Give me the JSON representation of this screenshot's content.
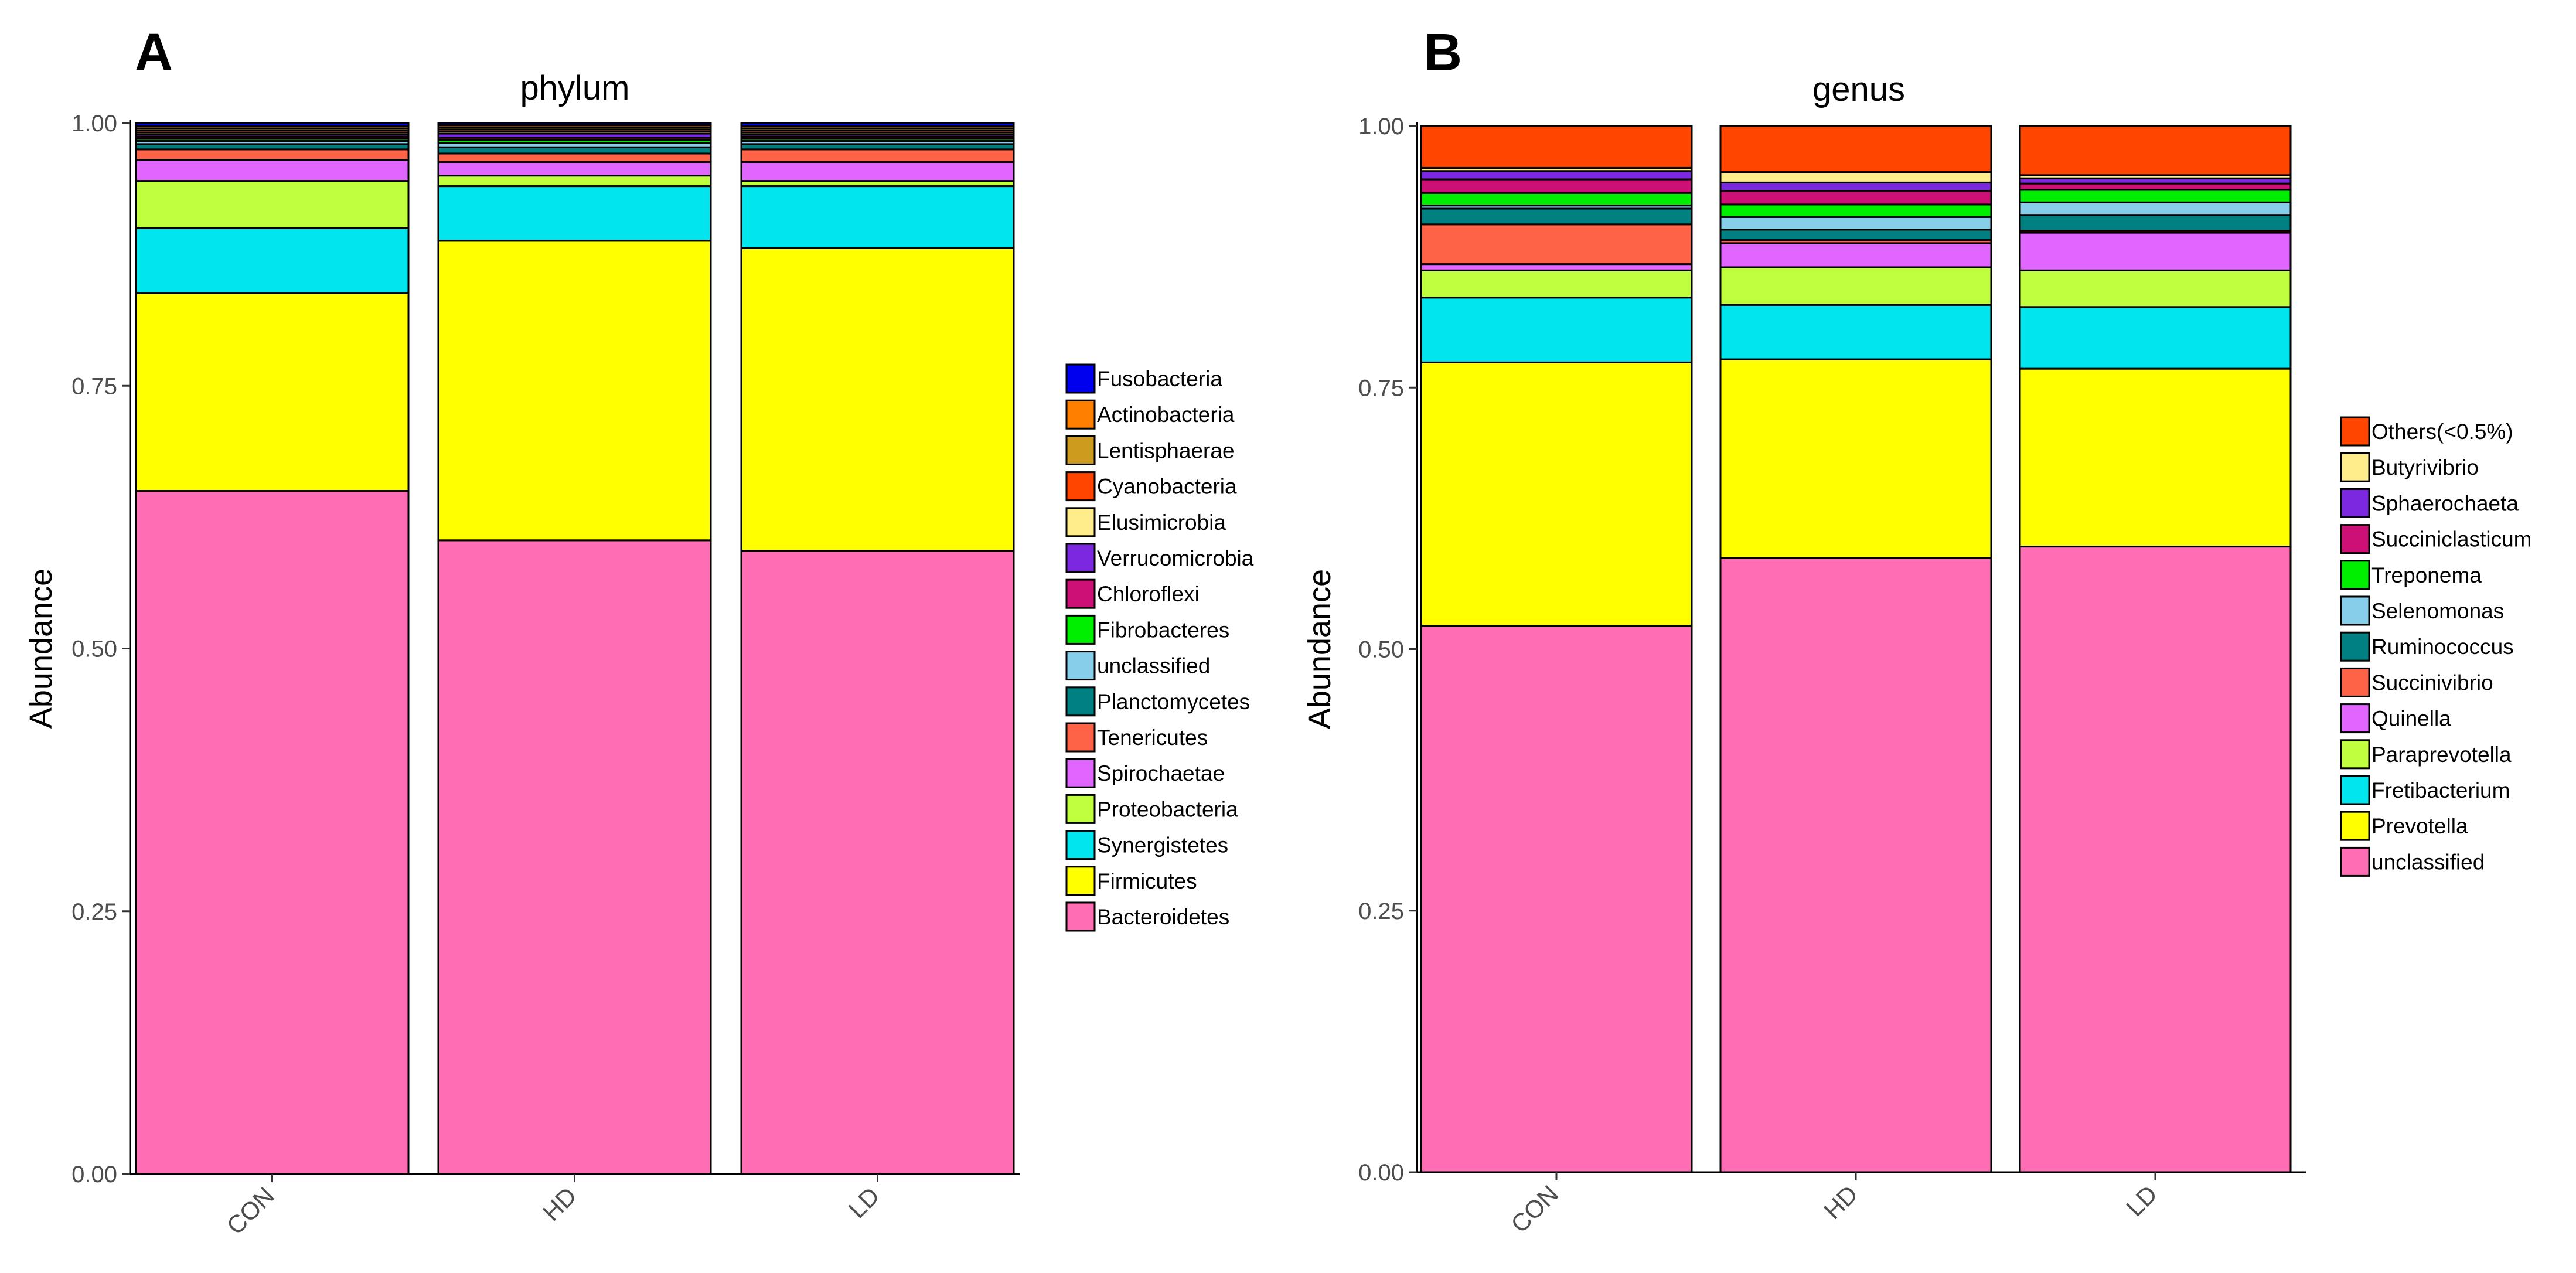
{
  "panels": [
    "A",
    "B"
  ],
  "chart_data": [
    {
      "type": "bar",
      "stacked": true,
      "title": "phylum",
      "ylabel": "Abundance",
      "xlabel": "",
      "ylim": [
        0,
        1
      ],
      "yticks": [
        "0.00",
        "0.25",
        "0.50",
        "0.75",
        "1.00"
      ],
      "categories": [
        "CON",
        "HD",
        "LD"
      ],
      "grid": false,
      "legend_position": "right",
      "legend": [
        "Fusobacteria",
        "Actinobacteria",
        "Lentisphaerae",
        "Cyanobacteria",
        "Elusimicrobia",
        "Verrucomicrobia",
        "Chloroflexi",
        "Fibrobacteres",
        "unclassified",
        "Planctomycetes",
        "Tenericutes",
        "Spirochaetae",
        "Proteobacteria",
        "Synergistetes",
        "Firmicutes",
        "Bacteroidetes"
      ],
      "series": [
        {
          "name": "Bacteroidetes",
          "color": "#ff6eb4",
          "values": [
            0.65,
            0.603,
            0.593
          ]
        },
        {
          "name": "Firmicutes",
          "color": "#ffff00",
          "values": [
            0.188,
            0.285,
            0.288
          ]
        },
        {
          "name": "Synergistetes",
          "color": "#00e5ee",
          "values": [
            0.062,
            0.052,
            0.059
          ]
        },
        {
          "name": "Proteobacteria",
          "color": "#c0ff3e",
          "values": [
            0.045,
            0.01,
            0.005
          ]
        },
        {
          "name": "Spirochaetae",
          "color": "#e066ff",
          "values": [
            0.02,
            0.013,
            0.018
          ]
        },
        {
          "name": "Tenericutes",
          "color": "#ff6347",
          "values": [
            0.01,
            0.008,
            0.012
          ]
        },
        {
          "name": "Planctomycetes",
          "color": "#008080",
          "values": [
            0.005,
            0.006,
            0.005
          ]
        },
        {
          "name": "unclassified",
          "color": "#87ceeb",
          "values": [
            0.003,
            0.004,
            0.003
          ]
        },
        {
          "name": "Fibrobacteres",
          "color": "#00ee00",
          "values": [
            0.002,
            0.003,
            0.002
          ]
        },
        {
          "name": "Chloroflexi",
          "color": "#cd1076",
          "values": [
            0.002,
            0.002,
            0.002
          ]
        },
        {
          "name": "Verrucomicrobia",
          "color": "#7b28e0",
          "values": [
            0.002,
            0.004,
            0.002
          ]
        },
        {
          "name": "Elusimicrobia",
          "color": "#ffec8b",
          "values": [
            0.002,
            0.002,
            0.002
          ]
        },
        {
          "name": "Cyanobacteria",
          "color": "#ff4500",
          "values": [
            0.002,
            0.002,
            0.002
          ]
        },
        {
          "name": "Lentisphaerae",
          "color": "#cd9b1d",
          "values": [
            0.002,
            0.002,
            0.002
          ]
        },
        {
          "name": "Actinobacteria",
          "color": "#ff7f00",
          "values": [
            0.002,
            0.002,
            0.002
          ]
        },
        {
          "name": "Fusobacteria",
          "color": "#0000ee",
          "values": [
            0.003,
            0.002,
            0.003
          ]
        }
      ]
    },
    {
      "type": "bar",
      "stacked": true,
      "title": "genus",
      "ylabel": "Abundance",
      "xlabel": "",
      "ylim": [
        0,
        1
      ],
      "yticks": [
        "0.00",
        "0.25",
        "0.50",
        "0.75",
        "1.00"
      ],
      "categories": [
        "CON",
        "HD",
        "LD"
      ],
      "grid": false,
      "legend_position": "right",
      "legend": [
        "Others(<0.5%)",
        "Butyrivibrio",
        "Sphaerochaeta",
        "Succiniclasticum",
        "Treponema",
        "Selenomonas",
        "Ruminococcus",
        "Succinivibrio",
        "Quinella",
        "Paraprevotella",
        "Fretibacterium",
        "Prevotella",
        "unclassified"
      ],
      "series": [
        {
          "name": "unclassified",
          "color": "#ff6eb4",
          "values": [
            0.522,
            0.587,
            0.598
          ]
        },
        {
          "name": "Prevotella",
          "color": "#ffff00",
          "values": [
            0.252,
            0.19,
            0.17
          ]
        },
        {
          "name": "Fretibacterium",
          "color": "#00e5ee",
          "values": [
            0.062,
            0.052,
            0.059
          ]
        },
        {
          "name": "Paraprevotella",
          "color": "#c0ff3e",
          "values": [
            0.026,
            0.036,
            0.035
          ]
        },
        {
          "name": "Quinella",
          "color": "#e066ff",
          "values": [
            0.006,
            0.023,
            0.036
          ]
        },
        {
          "name": "Succinivibrio",
          "color": "#ff6347",
          "values": [
            0.038,
            0.003,
            0.002
          ]
        },
        {
          "name": "Ruminococcus",
          "color": "#008080",
          "values": [
            0.015,
            0.01,
            0.015
          ]
        },
        {
          "name": "Selenomonas",
          "color": "#87ceeb",
          "values": [
            0.003,
            0.012,
            0.012
          ]
        },
        {
          "name": "Treponema",
          "color": "#00ee00",
          "values": [
            0.012,
            0.012,
            0.012
          ]
        },
        {
          "name": "Succiniclasticum",
          "color": "#cd1076",
          "values": [
            0.013,
            0.013,
            0.006
          ]
        },
        {
          "name": "Sphaerochaeta",
          "color": "#7b28e0",
          "values": [
            0.008,
            0.008,
            0.005
          ]
        },
        {
          "name": "Butyrivibrio",
          "color": "#ffec8b",
          "values": [
            0.003,
            0.01,
            0.003
          ]
        },
        {
          "name": "Others(<0.5%)",
          "color": "#ff4500",
          "values": [
            0.04,
            0.044,
            0.047
          ]
        }
      ]
    }
  ]
}
